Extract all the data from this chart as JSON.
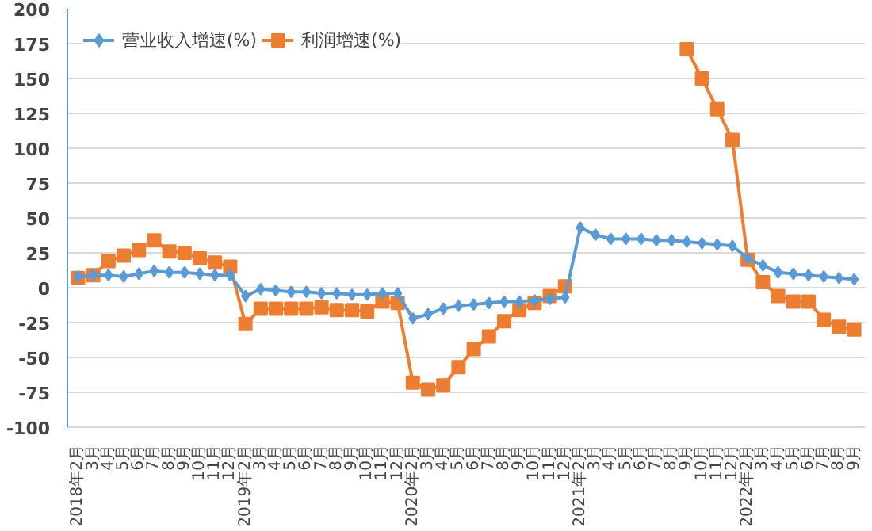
{
  "chart_data": {
    "type": "line",
    "categories": [
      "2018年2月",
      "3月",
      "4月",
      "5月",
      "6月",
      "7月",
      "8月",
      "9月",
      "10月",
      "11月",
      "12月",
      "2019年2月",
      "3月",
      "4月",
      "5月",
      "6月",
      "7月",
      "8月",
      "9月",
      "10月",
      "11月",
      "12月",
      "2020年2月",
      "3月",
      "4月",
      "5月",
      "6月",
      "7月",
      "8月",
      "9月",
      "10月",
      "11月",
      "12月",
      "2021年2月",
      "3月",
      "4月",
      "5月",
      "6月",
      "7月",
      "8月",
      "9月",
      "10月",
      "11月",
      "12月",
      "2022年2月",
      "3月",
      "4月",
      "5月",
      "6月",
      "7月",
      "8月",
      "9月"
    ],
    "series": [
      {
        "name": "营业收入增速(%)",
        "color": "#5b9bd5",
        "marker": "diamond",
        "values": [
          8,
          9,
          9,
          8,
          10,
          12,
          11,
          11,
          10,
          9,
          9,
          -6,
          -1,
          -2,
          -3,
          -3,
          -4,
          -4,
          -5,
          -5,
          -4,
          -4,
          -22,
          -19,
          -15,
          -13,
          -12,
          -11,
          -10,
          -10,
          -9,
          -8,
          -7,
          43,
          38,
          35,
          35,
          35,
          34,
          34,
          33,
          32,
          31,
          30,
          21,
          16,
          11,
          10,
          9,
          8,
          7,
          6
        ]
      },
      {
        "name": "利润增速(%)",
        "color": "#ed7d31",
        "marker": "square",
        "values": [
          7,
          9,
          19,
          23,
          27,
          34,
          26,
          25,
          21,
          18,
          15,
          -26,
          -15,
          -15,
          -15,
          -15,
          -14,
          -16,
          -16,
          -17,
          -10,
          -11,
          -68,
          -73,
          -70,
          -57,
          -44,
          -35,
          -24,
          -16,
          -11,
          -6,
          1,
          null,
          null,
          null,
          null,
          null,
          null,
          null,
          171,
          150,
          128,
          106,
          20,
          4,
          -6,
          -10,
          -10,
          -23,
          -28,
          -30
        ]
      }
    ],
    "ylim": [
      -100,
      200
    ],
    "yticks": [
      -100,
      -75,
      -50,
      -25,
      0,
      25,
      50,
      75,
      100,
      125,
      150,
      175,
      200
    ],
    "grid": "y",
    "legend": "top left",
    "line_style": "solid"
  }
}
